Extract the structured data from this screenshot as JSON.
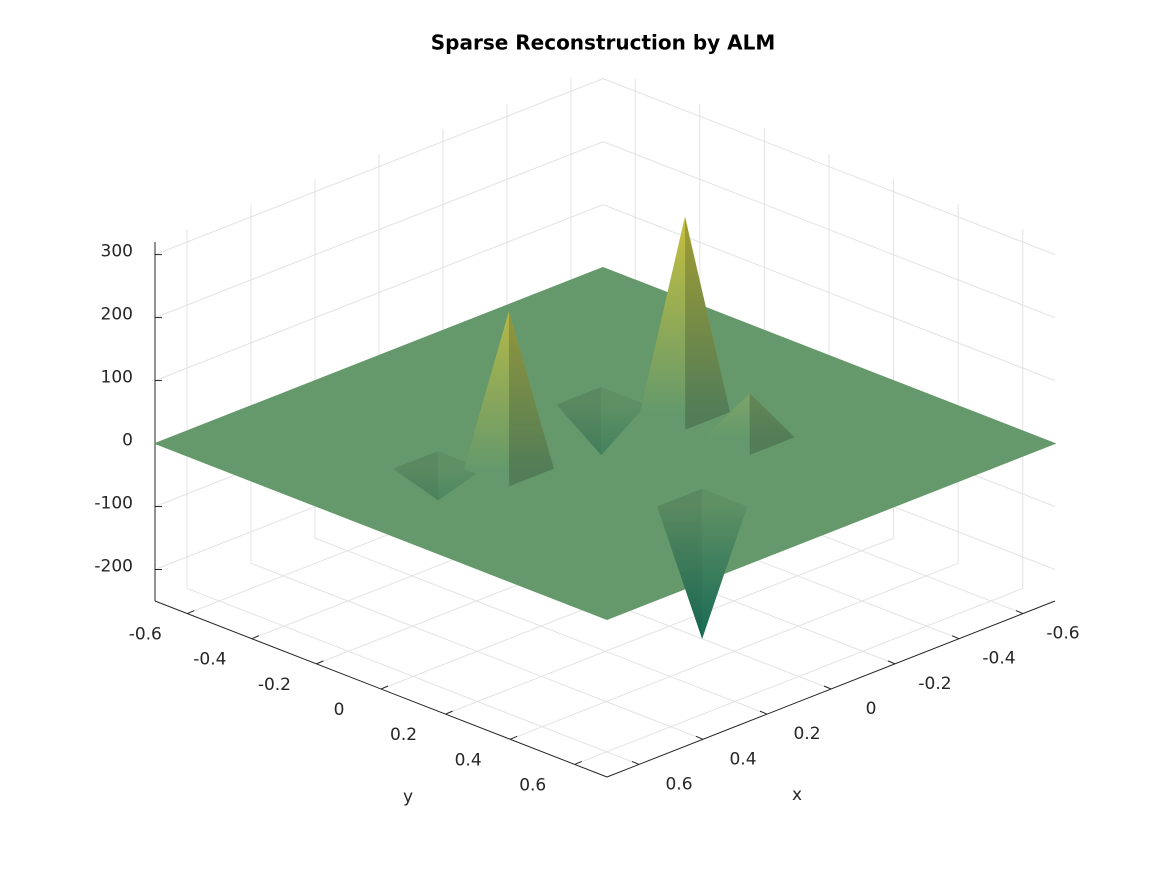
{
  "chart_data": {
    "type": "surface3d",
    "title": "Sparse Reconstruction by ALM",
    "xlabel": "x",
    "ylabel": "y",
    "x": [
      -0.25,
      0.25,
      0.1,
      -0.25,
      0.36,
      -0.15
    ],
    "y": [
      0,
      -0.05,
      0.4,
      0.2,
      -0.16,
      -0.16
    ],
    "values": [
      310,
      250,
      -210,
      70,
      -50,
      -80
    ],
    "xlim": [
      -0.7,
      0.7
    ],
    "ylim": [
      -0.7,
      0.7
    ],
    "zlim": [
      -250,
      320
    ],
    "xticks": [
      -0.6,
      -0.4,
      -0.2,
      0,
      0.2,
      0.4,
      0.6
    ],
    "yticks": [
      -0.6,
      -0.4,
      -0.2,
      0,
      0.2,
      0.4,
      0.6
    ],
    "zticks": [
      -200,
      -100,
      0,
      100,
      200,
      300
    ],
    "grid": true,
    "colormap": [
      "#0a6b58",
      "#72a06e",
      "#c9c03c"
    ]
  }
}
